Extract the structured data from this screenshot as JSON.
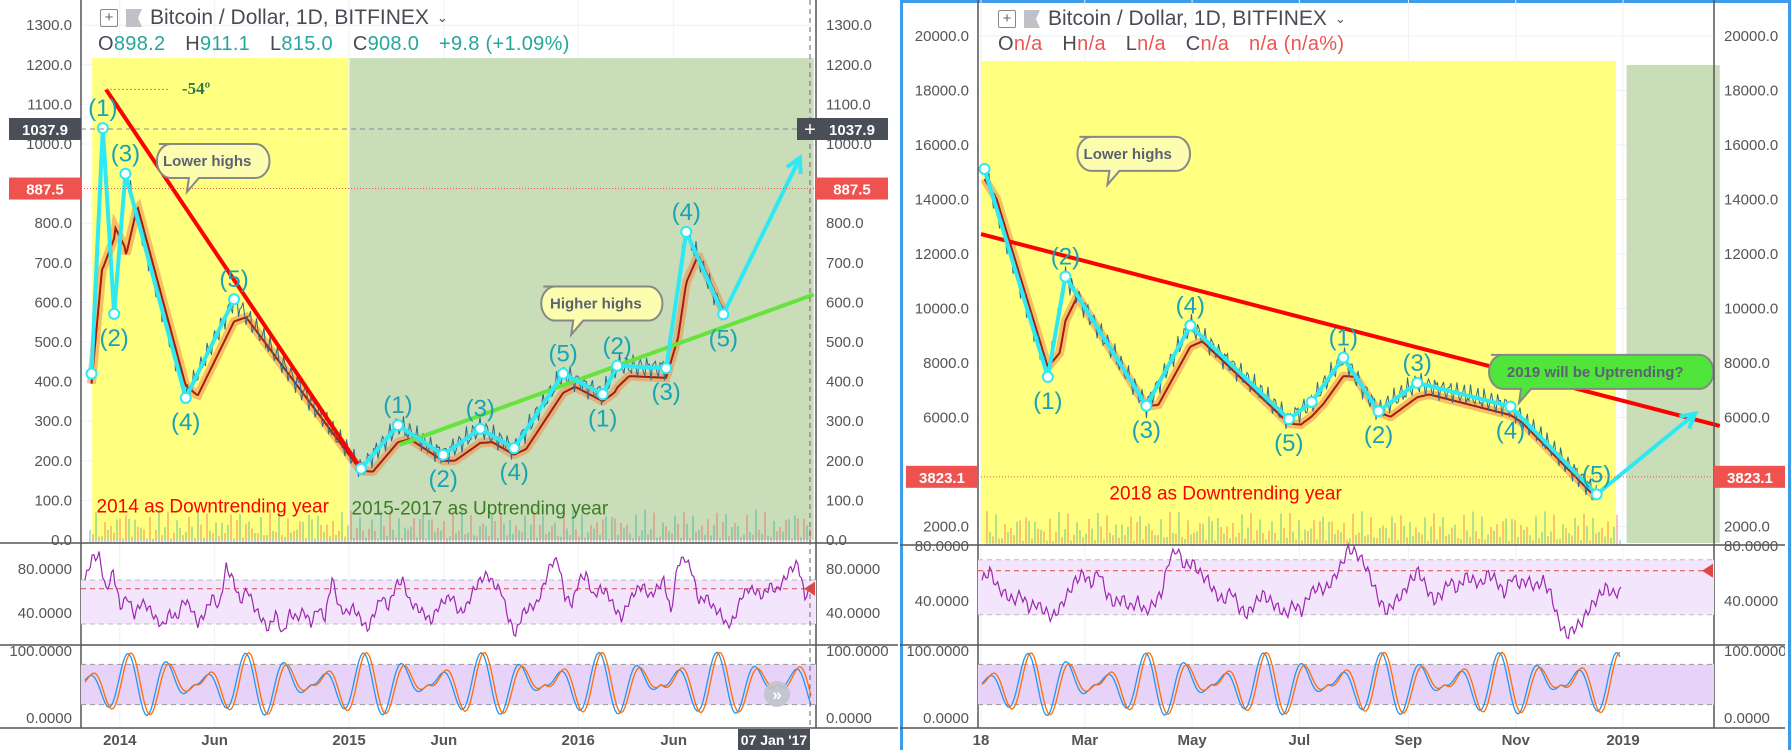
{
  "chart_data": [
    {
      "type": "line",
      "title": "Bitcoin / Dollar, 1D, BITFINEX",
      "ohlc": {
        "o_label": "O",
        "o": "898.2",
        "h_label": "H",
        "h": "911.1",
        "l_label": "L",
        "l": "815.0",
        "c_label": "C",
        "c": "908.0",
        "change": "+9.8 (+1.09%)"
      },
      "value_color": "#26a69a",
      "y_ticks": [
        {
          "v": 0,
          "label": "0.0"
        },
        {
          "v": 100,
          "label": "100.0"
        },
        {
          "v": 200,
          "label": "200.0"
        },
        {
          "v": 300,
          "label": "300.0"
        },
        {
          "v": 400,
          "label": "400.0"
        },
        {
          "v": 500,
          "label": "500.0"
        },
        {
          "v": 600,
          "label": "600.0"
        },
        {
          "v": 700,
          "label": "700.0"
        },
        {
          "v": 800,
          "label": "800.0"
        },
        {
          "v": 1000,
          "label": "1000.0"
        },
        {
          "v": 1100,
          "label": "1100.0"
        },
        {
          "v": 1200,
          "label": "1200.0"
        },
        {
          "v": 1300,
          "label": "1300.0"
        }
      ],
      "ylim": [
        0,
        1350
      ],
      "x_ticks": [
        {
          "d": "2014-01-01",
          "label": "2014"
        },
        {
          "d": "2014-06-01",
          "label": "Jun"
        },
        {
          "d": "2015-01-01",
          "label": "2015"
        },
        {
          "d": "2015-06-01",
          "label": "Jun"
        },
        {
          "d": "2016-01-01",
          "label": "2016"
        },
        {
          "d": "2016-06-01",
          "label": "Jun"
        }
      ],
      "crosshair": {
        "date_label": "07 Jan '17",
        "price_label": "1037.9",
        "price": 1037.9
      },
      "price_marker": {
        "label": "887.5",
        "price": 887.5,
        "color": "#ef5350"
      },
      "regions": [
        {
          "from": "2013-11-18",
          "to": "2014-12-31",
          "top": 1217,
          "bottom": 0,
          "color": "#ffff80"
        },
        {
          "from": "2015-01-02",
          "to": "2017-01-10",
          "top": 1217,
          "bottom": 0,
          "color": "#c9ddb9"
        }
      ],
      "waves": [
        {
          "points": [
            {
              "d": "2013-11-17",
              "v": 420,
              "label": ""
            },
            {
              "d": "2013-12-05",
              "v": 1040,
              "label": "(1)",
              "pos": "above"
            },
            {
              "d": "2013-12-23",
              "v": 571,
              "label": "(2)",
              "pos": "below"
            },
            {
              "d": "2014-01-10",
              "v": 925,
              "label": "(3)",
              "pos": "above"
            },
            {
              "d": "2014-04-16",
              "v": 359,
              "label": "(4)",
              "pos": "below"
            },
            {
              "d": "2014-07-02",
              "v": 608,
              "label": "(5)",
              "pos": "above"
            }
          ]
        },
        {
          "arrow": true,
          "points": [
            {
              "d": "2015-01-20",
              "v": 180,
              "label": ""
            },
            {
              "d": "2015-03-20",
              "v": 290,
              "label": "(1)",
              "pos": "above"
            },
            {
              "d": "2015-05-31",
              "v": 215,
              "label": "(2)",
              "pos": "below"
            },
            {
              "d": "2015-07-29",
              "v": 281,
              "label": "(3)",
              "pos": "above"
            },
            {
              "d": "2015-09-21",
              "v": 232,
              "label": "(4)",
              "pos": "below"
            },
            {
              "d": "2015-12-08",
              "v": 420,
              "label": "(5)",
              "pos": "above"
            },
            {
              "d": "2016-02-09",
              "v": 368,
              "label": "(1)",
              "pos": "below"
            },
            {
              "d": "2016-03-03",
              "v": 440,
              "label": "(2)",
              "pos": "above"
            },
            {
              "d": "2016-05-20",
              "v": 434,
              "label": "(3)",
              "pos": "below"
            },
            {
              "d": "2016-06-21",
              "v": 778,
              "label": "(4)",
              "pos": "above"
            },
            {
              "d": "2016-08-19",
              "v": 570,
              "label": "(5)",
              "pos": "below"
            },
            {
              "d": "2016-12-19",
              "v": 965,
              "label": ""
            }
          ]
        }
      ],
      "trendlines": [
        {
          "from": {
            "d": "2013-12-10",
            "v": 1138
          },
          "to": {
            "d": "2015-01-20",
            "v": 180
          },
          "color": "#ff0000"
        },
        {
          "from": {
            "d": "2015-03-23",
            "v": 241
          },
          "to": {
            "d": "2017-01-10",
            "v": 620
          },
          "color": "#66e33d"
        }
      ],
      "angle_label": {
        "text": "-54º",
        "d": "2014-04-02",
        "v": 1141
      },
      "callouts": [
        {
          "text": "Lower highs",
          "d": "2014-02-10",
          "v": 1000,
          "color": "#fdfdb0"
        },
        {
          "text": "Higher highs",
          "d": "2015-10-15",
          "v": 640,
          "color": "#fdfdb0"
        }
      ],
      "notes": [
        {
          "text": "2014 as Downtrending year",
          "d": "2013-11-25",
          "v": 70,
          "color": "#ff0000"
        },
        {
          "text": "2015-2017 as Uptrending year",
          "d": "2015-01-05",
          "v": 65,
          "color": "#3a7d24"
        }
      ],
      "rsi": {
        "ticks": [
          {
            "v": 80,
            "label": "80.0000"
          },
          {
            "v": 40,
            "label": "40.0000"
          }
        ],
        "upper": 70,
        "lower": 30,
        "signal": 62,
        "values": [
          70,
          90,
          92,
          60,
          78,
          45,
          55,
          38,
          50,
          45,
          35,
          28,
          40,
          35,
          52,
          45,
          30,
          40,
          55,
          45,
          82,
          70,
          50,
          62,
          45,
          35,
          25,
          40,
          20,
          40,
          35,
          42,
          30,
          45,
          35,
          72,
          45,
          40,
          45,
          35,
          25,
          40,
          55,
          45,
          65,
          70,
          50,
          45,
          40,
          32,
          45,
          52,
          55,
          40,
          45,
          60,
          70,
          75,
          65,
          60,
          35,
          20,
          40,
          45,
          48,
          65,
          85,
          88,
          55,
          48,
          70,
          75,
          55,
          62,
          58,
          45,
          35,
          50,
          60,
          65,
          55,
          62,
          70,
          40,
          85,
          90,
          78,
          50,
          55,
          45,
          40,
          28,
          35,
          55,
          62,
          60,
          55,
          65,
          60,
          70,
          80,
          85,
          55,
          62
        ]
      },
      "stoch": {
        "ticks": [
          {
            "v": 100,
            "label": "100.0000"
          },
          {
            "v": 0,
            "label": "0.0000"
          }
        ],
        "upper": 80,
        "lower": 20
      },
      "scroll_button_icon": "double-chevron-right-icon"
    },
    {
      "type": "line",
      "title": "Bitcoin / Dollar, 1D, BITFINEX",
      "ohlc": {
        "o_label": "O",
        "o": "n/a",
        "h_label": "H",
        "h": "n/a",
        "l_label": "L",
        "l": "n/a",
        "c_label": "C",
        "c": "n/a",
        "change": "n/a (n/a%)"
      },
      "value_color": "#ef5350",
      "y_ticks": [
        {
          "v": 2000,
          "label": "2000.0"
        },
        {
          "v": 6000,
          "label": "6000.0"
        },
        {
          "v": 8000,
          "label": "8000.0"
        },
        {
          "v": 10000,
          "label": "10000.0"
        },
        {
          "v": 12000,
          "label": "12000.0"
        },
        {
          "v": 14000,
          "label": "14000.0"
        },
        {
          "v": 16000,
          "label": "16000.0"
        },
        {
          "v": 18000,
          "label": "18000.0"
        },
        {
          "v": 20000,
          "label": "20000.0"
        }
      ],
      "ylim": [
        1500,
        21000
      ],
      "x_ticks": [
        {
          "d": "2018-01-01",
          "label": "18"
        },
        {
          "d": "2018-03-01",
          "label": "Mar"
        },
        {
          "d": "2018-05-01",
          "label": "May"
        },
        {
          "d": "2018-07-01",
          "label": "Jul"
        },
        {
          "d": "2018-09-01",
          "label": "Sep"
        },
        {
          "d": "2018-11-01",
          "label": "Nov"
        },
        {
          "d": "2019-01-01",
          "label": "2019"
        }
      ],
      "price_marker": {
        "label": "3823.1",
        "price": 3823.1,
        "color": "#ef5350"
      },
      "regions": [
        {
          "from": "2018-01-01",
          "to": "2018-12-28",
          "top": 19083,
          "bottom": 1394,
          "color": "#ffff80"
        },
        {
          "from": "2019-01-03",
          "to": "2019-02-25",
          "top": 18936,
          "bottom": 1394,
          "color": "#c9ddb9"
        }
      ],
      "waves": [
        {
          "arrow": true,
          "points": [
            {
              "d": "2018-01-03",
              "v": 15120,
              "label": ""
            },
            {
              "d": "2018-02-08",
              "v": 7490,
              "label": "(1)",
              "pos": "below"
            },
            {
              "d": "2018-02-18",
              "v": 11170,
              "label": "(2)",
              "pos": "above"
            },
            {
              "d": "2018-04-05",
              "v": 6430,
              "label": "(3)",
              "pos": "below"
            },
            {
              "d": "2018-04-30",
              "v": 9370,
              "label": "(4)",
              "pos": "above"
            },
            {
              "d": "2018-06-25",
              "v": 5940,
              "label": "(5)",
              "pos": "below"
            },
            {
              "d": "2018-07-08",
              "v": 6570,
              "label": ""
            },
            {
              "d": "2018-07-26",
              "v": 8195,
              "label": "(1)",
              "pos": "above"
            },
            {
              "d": "2018-08-15",
              "v": 6230,
              "label": "(2)",
              "pos": "below"
            },
            {
              "d": "2018-09-06",
              "v": 7270,
              "label": "(3)",
              "pos": "above"
            },
            {
              "d": "2018-10-29",
              "v": 6400,
              "label": "(4)",
              "pos": "below"
            },
            {
              "d": "2018-12-17",
              "v": 3180,
              "label": "(5)",
              "pos": "above"
            },
            {
              "d": "2019-02-11",
              "v": 6140,
              "label": ""
            }
          ]
        }
      ],
      "trendlines": [
        {
          "from": {
            "d": "2018-01-01",
            "v": 12730
          },
          "to": {
            "d": "2019-02-25",
            "v": 5690
          },
          "color": "#ff0000"
        }
      ],
      "callouts": [
        {
          "text": "Lower highs",
          "d": "2018-02-18",
          "v": 16300,
          "color": "#fdfdb0"
        },
        {
          "text": "2019 will be Uptrending?",
          "d": "2018-10-10",
          "v": 8300,
          "color": "#4fe53a"
        }
      ],
      "notes": [
        {
          "text": "2018 as Downtrending year",
          "d": "2018-03-15",
          "v": 3000,
          "color": "#ff0000"
        }
      ],
      "rsi": {
        "ticks": [
          {
            "v": 80,
            "label": "80.0000"
          },
          {
            "v": 40,
            "label": "40.0000"
          }
        ],
        "upper": 70,
        "lower": 30,
        "signal": 62,
        "values": [
          55,
          62,
          50,
          45,
          40,
          45,
          35,
          38,
          33,
          28,
          35,
          45,
          55,
          60,
          52,
          62,
          45,
          38,
          42,
          35,
          40,
          32,
          38,
          45,
          70,
          78,
          65,
          68,
          60,
          55,
          45,
          40,
          48,
          35,
          30,
          38,
          45,
          40,
          35,
          30,
          38,
          32,
          45,
          50,
          48,
          55,
          65,
          78,
          75,
          68,
          55,
          40,
          32,
          40,
          45,
          55,
          62,
          50,
          40,
          45,
          55,
          48,
          58,
          55,
          52,
          60,
          55,
          45,
          58,
          52,
          55,
          50,
          55,
          45,
          25,
          15,
          20,
          25,
          35,
          42,
          50,
          45,
          47
        ]
      },
      "stoch": {
        "ticks": [
          {
            "v": 100,
            "label": "100.0000"
          },
          {
            "v": 0,
            "label": "0.0000"
          }
        ],
        "upper": 80,
        "lower": 20
      }
    }
  ]
}
